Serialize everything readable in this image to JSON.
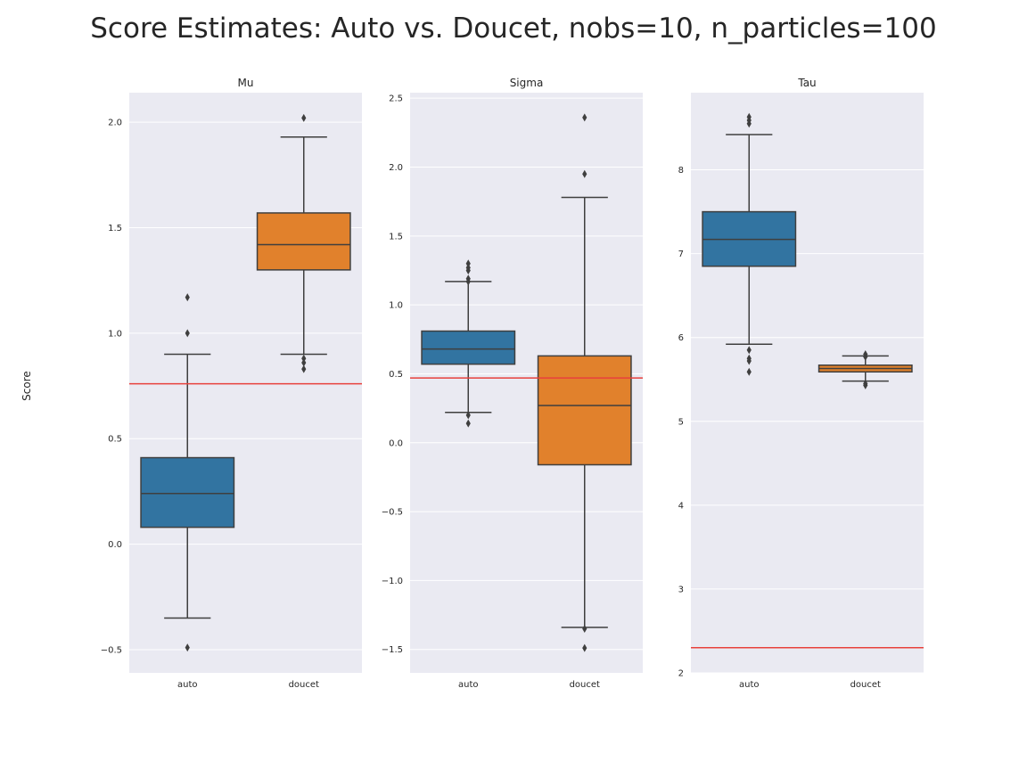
{
  "suptitle": "Score Estimates: Auto vs. Doucet, nobs=10, n_particles=100",
  "ylabel": "Score",
  "colors": {
    "auto": "#3274a1",
    "doucet": "#e1812c",
    "reference_line": "#e8413c",
    "panel_bg": "#eaeaf2",
    "grid": "#ffffff",
    "box_edge": "#3f3f3f"
  },
  "chart_data": [
    {
      "type": "box",
      "title": "Mu",
      "categories": [
        "auto",
        "doucet"
      ],
      "ylim": [
        -0.61,
        2.14
      ],
      "yticks": [
        -0.5,
        0.0,
        0.5,
        1.0,
        1.5,
        2.0
      ],
      "ytick_labels": [
        "−0.5",
        "0.0",
        "0.5",
        "1.0",
        "1.5",
        "2.0"
      ],
      "reference_line": 0.76,
      "grid": true,
      "boxes": [
        {
          "category": "auto",
          "q1": 0.08,
          "median": 0.24,
          "q3": 0.41,
          "whislo": -0.35,
          "whishi": 0.9,
          "fliers": [
            1.17,
            1.0,
            -0.49
          ]
        },
        {
          "category": "doucet",
          "q1": 1.3,
          "median": 1.42,
          "q3": 1.57,
          "whislo": 0.9,
          "whishi": 1.93,
          "fliers": [
            2.02,
            0.88,
            0.86,
            0.83
          ]
        }
      ]
    },
    {
      "type": "box",
      "title": "Sigma",
      "categories": [
        "auto",
        "doucet"
      ],
      "ylim": [
        -1.67,
        2.54
      ],
      "yticks": [
        -1.5,
        -1.0,
        -0.5,
        0.0,
        0.5,
        1.0,
        1.5,
        2.0,
        2.5
      ],
      "ytick_labels": [
        "−1.5",
        "−1.0",
        "−0.5",
        "0.0",
        "0.5",
        "1.0",
        "1.5",
        "2.0",
        "2.5"
      ],
      "reference_line": 0.47,
      "grid": true,
      "boxes": [
        {
          "category": "auto",
          "q1": 0.57,
          "median": 0.68,
          "q3": 0.81,
          "whislo": 0.22,
          "whishi": 1.17,
          "fliers": [
            1.3,
            1.27,
            1.25,
            1.19,
            1.17,
            0.2,
            0.14
          ]
        },
        {
          "category": "doucet",
          "q1": -0.16,
          "median": 0.27,
          "q3": 0.63,
          "whislo": -1.34,
          "whishi": 1.78,
          "fliers": [
            2.36,
            1.95,
            -1.35,
            -1.49
          ]
        }
      ]
    },
    {
      "type": "box",
      "title": "Tau",
      "categories": [
        "auto",
        "doucet"
      ],
      "ylim": [
        2.0,
        8.92
      ],
      "yticks": [
        2,
        3,
        4,
        5,
        6,
        7,
        8
      ],
      "ytick_labels": [
        "2",
        "3",
        "4",
        "5",
        "6",
        "7",
        "8"
      ],
      "reference_line": 2.3,
      "grid": true,
      "boxes": [
        {
          "category": "auto",
          "q1": 6.85,
          "median": 7.17,
          "q3": 7.5,
          "whislo": 5.92,
          "whishi": 8.42,
          "fliers": [
            8.63,
            8.59,
            8.55,
            5.85,
            5.75,
            5.72,
            5.59
          ]
        },
        {
          "category": "doucet",
          "q1": 5.59,
          "median": 5.63,
          "q3": 5.67,
          "whislo": 5.48,
          "whishi": 5.78,
          "fliers": [
            5.8,
            5.77,
            5.45,
            5.43
          ]
        }
      ]
    }
  ]
}
